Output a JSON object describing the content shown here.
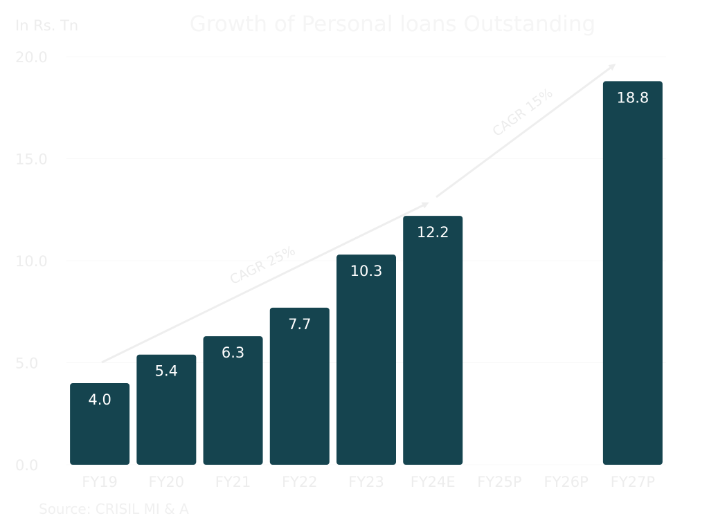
{
  "chart_data": {
    "type": "bar",
    "title": "Growth of Personal loans Outstanding",
    "unit_label": "In Rs. Tn",
    "source": "Source: CRISIL MI & A",
    "categories": [
      "FY19",
      "FY20",
      "FY21",
      "FY22",
      "FY23",
      "FY24E",
      "FY25P",
      "FY26P",
      "FY27P"
    ],
    "values": [
      4.0,
      5.4,
      6.3,
      7.7,
      10.3,
      12.2,
      null,
      null,
      18.8
    ],
    "value_labels": [
      "4.0",
      "5.4",
      "6.3",
      "7.7",
      "10.3",
      "12.2",
      "",
      "",
      "18.8"
    ],
    "ylim": [
      0,
      20
    ],
    "yticks": [
      "0.0",
      "5.0",
      "10.0",
      "15.0",
      "20.0"
    ],
    "grid": true,
    "bar_color": "#15444f",
    "annotations": [
      {
        "text": "CAGR 25%",
        "from": "FY19",
        "to": "FY24E"
      },
      {
        "text": "CAGR 15%",
        "from": "FY24E",
        "to": "FY27P"
      }
    ]
  }
}
